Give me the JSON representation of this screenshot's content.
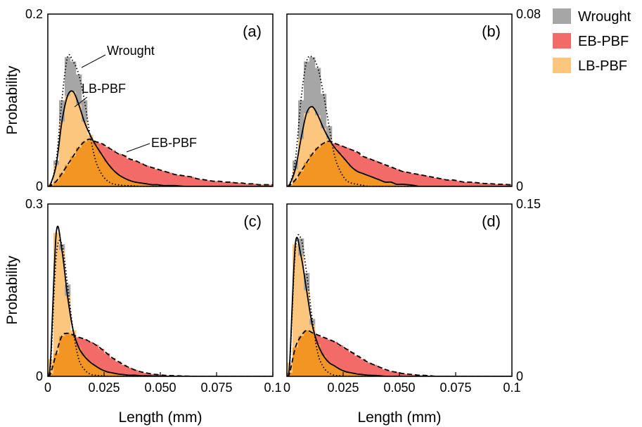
{
  "legend": {
    "position": "top-right",
    "entries": [
      {
        "name": "Wrought",
        "color": "#a6a6a6"
      },
      {
        "name": "EB-PBF",
        "color": "#f26b68"
      },
      {
        "name": "LB-PBF",
        "color": "#fcc67e"
      }
    ]
  },
  "colors": {
    "overlap": "#f29523",
    "curve": "#000000"
  },
  "curve_styles": {
    "Wrought": "dotted",
    "LB-PBF": "solid",
    "EB-PBF": "dashed"
  },
  "chart_data": [
    {
      "panel": "(a)",
      "type": "bar",
      "position": "top-left",
      "xlim": [
        0,
        0.1
      ],
      "ylim": [
        0,
        0.2
      ],
      "ylabel": "Probability",
      "yticks": [
        "0",
        "0.2"
      ],
      "bin_width": 0.0025,
      "series": [
        {
          "name": "Wrought",
          "values": [
            0.002,
            0.03,
            0.1,
            0.15,
            0.145,
            0.13,
            0.1,
            0.06,
            0.03,
            0.015,
            0.007,
            0.003,
            0.002,
            0.001,
            0.001,
            0.0005,
            0,
            0,
            0,
            0,
            0,
            0,
            0,
            0,
            0,
            0,
            0,
            0,
            0,
            0,
            0,
            0,
            0,
            0,
            0,
            0,
            0,
            0,
            0,
            0
          ]
        },
        {
          "name": "LB-PBF",
          "values": [
            0.003,
            0.025,
            0.075,
            0.105,
            0.11,
            0.095,
            0.075,
            0.06,
            0.048,
            0.038,
            0.028,
            0.02,
            0.014,
            0.01,
            0.007,
            0.005,
            0.004,
            0.003,
            0.002,
            0.002,
            0.001,
            0.001,
            0.001,
            0.0005,
            0,
            0,
            0,
            0,
            0,
            0,
            0,
            0,
            0,
            0,
            0,
            0,
            0,
            0,
            0,
            0
          ]
        },
        {
          "name": "EB-PBF",
          "values": [
            0.001,
            0.006,
            0.015,
            0.025,
            0.035,
            0.045,
            0.052,
            0.055,
            0.052,
            0.05,
            0.046,
            0.042,
            0.038,
            0.036,
            0.032,
            0.03,
            0.027,
            0.024,
            0.022,
            0.02,
            0.018,
            0.016,
            0.014,
            0.013,
            0.012,
            0.011,
            0.009,
            0.008,
            0.007,
            0.006,
            0.006,
            0.005,
            0.005,
            0.004,
            0.004,
            0.003,
            0.003,
            0.002,
            0.002,
            0.002
          ]
        }
      ],
      "annotations": [
        {
          "text": "Wrought",
          "for": "Wrought"
        },
        {
          "text": "LB-PBF",
          "for": "LB-PBF"
        },
        {
          "text": "EB-PBF",
          "for": "EB-PBF"
        }
      ]
    },
    {
      "panel": "(b)",
      "type": "bar",
      "position": "top-right",
      "xlim": [
        0,
        0.1
      ],
      "ylim": [
        0,
        0.08
      ],
      "ylabel": "",
      "yticks": [
        "0",
        "0.08"
      ],
      "bin_width": 0.0025,
      "series": [
        {
          "name": "Wrought",
          "values": [
            0.001,
            0.012,
            0.04,
            0.058,
            0.06,
            0.055,
            0.043,
            0.028,
            0.014,
            0.007,
            0.003,
            0.0015,
            0.001,
            0.0005,
            0,
            0,
            0,
            0,
            0,
            0,
            0,
            0,
            0,
            0,
            0,
            0,
            0,
            0,
            0,
            0,
            0,
            0,
            0,
            0,
            0,
            0,
            0,
            0,
            0,
            0
          ]
        },
        {
          "name": "LB-PBF",
          "values": [
            0.001,
            0.008,
            0.022,
            0.034,
            0.037,
            0.033,
            0.027,
            0.022,
            0.018,
            0.015,
            0.012,
            0.009,
            0.007,
            0.006,
            0.005,
            0.004,
            0.003,
            0.002,
            0.002,
            0.001,
            0.001,
            0.0008,
            0.0005,
            0,
            0,
            0,
            0,
            0,
            0,
            0,
            0,
            0,
            0,
            0,
            0,
            0,
            0,
            0,
            0,
            0
          ]
        },
        {
          "name": "EB-PBF",
          "values": [
            0.0005,
            0.003,
            0.007,
            0.011,
            0.015,
            0.018,
            0.02,
            0.021,
            0.02,
            0.019,
            0.018,
            0.017,
            0.016,
            0.014,
            0.013,
            0.012,
            0.011,
            0.01,
            0.009,
            0.008,
            0.007,
            0.0065,
            0.006,
            0.0055,
            0.005,
            0.0045,
            0.004,
            0.0035,
            0.003,
            0.003,
            0.0025,
            0.002,
            0.002,
            0.0018,
            0.0015,
            0.0013,
            0.0012,
            0.001,
            0.001,
            0.0008
          ]
        }
      ],
      "annotations": []
    },
    {
      "panel": "(c)",
      "type": "bar",
      "position": "bottom-left",
      "xlim": [
        0,
        0.1
      ],
      "ylim": [
        0,
        0.3
      ],
      "ylabel": "Probability",
      "yticks": [
        "0",
        "0.3"
      ],
      "xlabel": "Length (mm)",
      "xticks": [
        "0",
        "0.025",
        "0.050",
        "0.075",
        "0.1"
      ],
      "bin_width": 0.0025,
      "series": [
        {
          "name": "Wrought",
          "values": [
            0.02,
            0.21,
            0.23,
            0.16,
            0.08,
            0.03,
            0.012,
            0.004,
            0.002,
            0.001,
            0,
            0,
            0,
            0,
            0,
            0,
            0,
            0,
            0,
            0,
            0,
            0,
            0,
            0,
            0,
            0,
            0,
            0,
            0,
            0,
            0,
            0,
            0,
            0,
            0,
            0,
            0,
            0,
            0,
            0
          ]
        },
        {
          "name": "LB-PBF",
          "values": [
            0.03,
            0.25,
            0.22,
            0.14,
            0.08,
            0.05,
            0.035,
            0.025,
            0.018,
            0.012,
            0.008,
            0.006,
            0.004,
            0.003,
            0.002,
            0.002,
            0.001,
            0.001,
            0.0008,
            0.0005,
            0,
            0,
            0,
            0,
            0,
            0,
            0,
            0,
            0,
            0,
            0,
            0,
            0,
            0,
            0,
            0,
            0,
            0,
            0,
            0
          ]
        },
        {
          "name": "EB-PBF",
          "values": [
            0.005,
            0.04,
            0.07,
            0.075,
            0.072,
            0.068,
            0.065,
            0.06,
            0.055,
            0.048,
            0.04,
            0.032,
            0.026,
            0.02,
            0.015,
            0.011,
            0.008,
            0.006,
            0.004,
            0.003,
            0.002,
            0.0015,
            0.001,
            0.0008,
            0.0005,
            0.0003,
            0,
            0,
            0,
            0,
            0,
            0,
            0,
            0,
            0,
            0,
            0,
            0,
            0,
            0
          ]
        }
      ],
      "annotations": []
    },
    {
      "panel": "(d)",
      "type": "bar",
      "position": "bottom-right",
      "xlim": [
        0,
        0.1
      ],
      "ylim": [
        0,
        0.15
      ],
      "ylabel": "",
      "yticks": [
        "0",
        "0.15"
      ],
      "xlabel": "Length (mm)",
      "xticks": [
        "0",
        "0.025",
        "0.050",
        "0.075",
        "0.1"
      ],
      "bin_width": 0.0025,
      "series": [
        {
          "name": "Wrought",
          "values": [
            0.01,
            0.11,
            0.12,
            0.09,
            0.05,
            0.02,
            0.008,
            0.003,
            0.001,
            0.0005,
            0,
            0,
            0,
            0,
            0,
            0,
            0,
            0,
            0,
            0,
            0,
            0,
            0,
            0,
            0,
            0,
            0,
            0,
            0,
            0,
            0,
            0,
            0,
            0,
            0,
            0,
            0,
            0,
            0,
            0
          ]
        },
        {
          "name": "LB-PBF",
          "values": [
            0.012,
            0.115,
            0.105,
            0.075,
            0.045,
            0.028,
            0.018,
            0.012,
            0.009,
            0.006,
            0.004,
            0.003,
            0.002,
            0.0015,
            0.001,
            0.0008,
            0.0005,
            0,
            0,
            0,
            0,
            0,
            0,
            0,
            0,
            0,
            0,
            0,
            0,
            0,
            0,
            0,
            0,
            0,
            0,
            0,
            0,
            0,
            0,
            0
          ]
        },
        {
          "name": "EB-PBF",
          "values": [
            0.003,
            0.025,
            0.035,
            0.04,
            0.038,
            0.036,
            0.034,
            0.032,
            0.03,
            0.027,
            0.024,
            0.021,
            0.018,
            0.015,
            0.012,
            0.01,
            0.008,
            0.006,
            0.0045,
            0.0035,
            0.0025,
            0.002,
            0.0015,
            0.001,
            0.0008,
            0.0005,
            0,
            0,
            0,
            0,
            0,
            0,
            0,
            0,
            0,
            0,
            0,
            0,
            0,
            0
          ]
        }
      ],
      "annotations": []
    }
  ]
}
